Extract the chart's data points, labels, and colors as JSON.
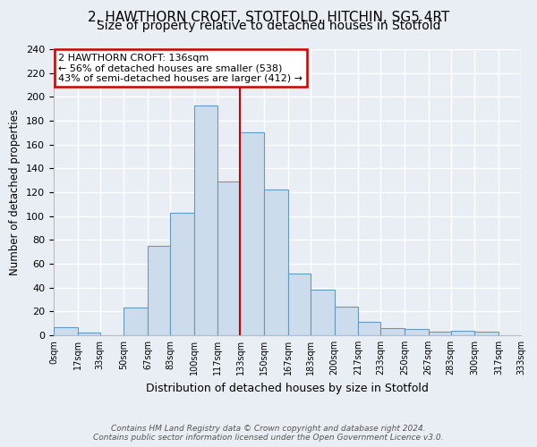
{
  "title": "2, HAWTHORN CROFT, STOTFOLD, HITCHIN, SG5 4RT",
  "subtitle": "Size of property relative to detached houses in Stotfold",
  "xlabel": "Distribution of detached houses by size in Stotfold",
  "ylabel": "Number of detached properties",
  "bar_color": "#ccdcec",
  "bar_edge_color": "#6699bb",
  "bin_edges": [
    0,
    17,
    33,
    50,
    67,
    83,
    100,
    117,
    133,
    150,
    167,
    183,
    200,
    217,
    233,
    250,
    267,
    283,
    300,
    317,
    333
  ],
  "bar_heights": [
    7,
    2,
    0,
    23,
    75,
    103,
    193,
    129,
    170,
    122,
    52,
    38,
    24,
    11,
    6,
    5,
    3,
    4,
    3,
    0
  ],
  "tick_labels": [
    "0sqm",
    "17sqm",
    "33sqm",
    "50sqm",
    "67sqm",
    "83sqm",
    "100sqm",
    "117sqm",
    "133sqm",
    "150sqm",
    "167sqm",
    "183sqm",
    "200sqm",
    "217sqm",
    "233sqm",
    "250sqm",
    "267sqm",
    "283sqm",
    "300sqm",
    "317sqm",
    "333sqm"
  ],
  "vline_x": 133,
  "vline_color": "#cc0000",
  "annotation_line1": "2 HAWTHORN CROFT: 136sqm",
  "annotation_line2": "← 56% of detached houses are smaller (538)",
  "annotation_line3": "43% of semi-detached houses are larger (412) →",
  "annotation_box_color": "#ffffff",
  "annotation_box_edge": "#cc0000",
  "ylim": [
    0,
    240
  ],
  "yticks": [
    0,
    20,
    40,
    60,
    80,
    100,
    120,
    140,
    160,
    180,
    200,
    220,
    240
  ],
  "footer1": "Contains HM Land Registry data © Crown copyright and database right 2024.",
  "footer2": "Contains public sector information licensed under the Open Government Licence v3.0.",
  "bg_color": "#e8eef4",
  "plot_bg_color": "#e8eef4",
  "grid_color": "#ffffff",
  "title_fontsize": 11,
  "subtitle_fontsize": 10,
  "tick_fontsize": 7,
  "ylabel_fontsize": 8.5,
  "xlabel_fontsize": 9,
  "footer_fontsize": 6.5,
  "annotation_fontsize": 8
}
